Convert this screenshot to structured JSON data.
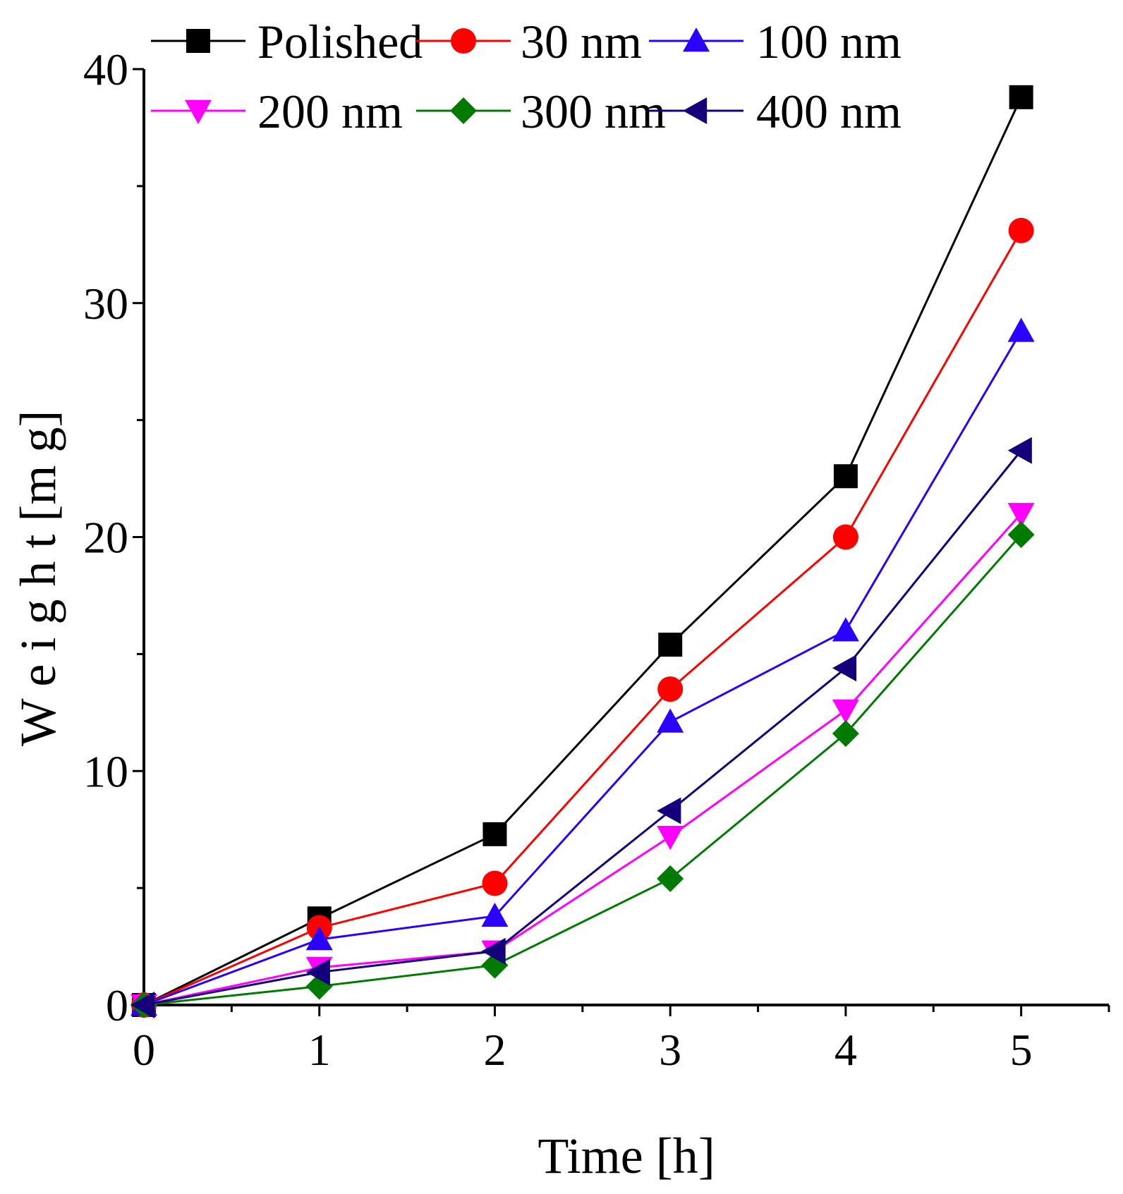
{
  "chart_data": {
    "type": "line",
    "title": "",
    "xlabel": "Time [h]",
    "ylabel": "W e i g h t  [m g]",
    "xlim": [
      0,
      5.5
    ],
    "ylim": [
      0,
      40
    ],
    "x_ticks": [
      0,
      1,
      2,
      3,
      4,
      5
    ],
    "x_tick_labels": [
      "0",
      "1",
      "2",
      "3",
      "4",
      "5"
    ],
    "y_ticks": [
      0,
      10,
      20,
      30,
      40
    ],
    "y_tick_labels": [
      "0",
      "10",
      "20",
      "30",
      "40"
    ],
    "grid": false,
    "legend_position": "top",
    "x": [
      0,
      1,
      2,
      3,
      4,
      5
    ],
    "series": [
      {
        "name": "Polished",
        "color": "#000000",
        "marker": "square",
        "values": [
          0,
          3.7,
          7.3,
          15.4,
          22.6,
          38.8
        ]
      },
      {
        "name": "30 nm",
        "color": "#ff0000",
        "marker": "circle",
        "values": [
          0,
          3.3,
          5.2,
          13.5,
          20.0,
          33.1
        ]
      },
      {
        "name": "100 nm",
        "color": "#2a00ff",
        "marker": "triangle-up",
        "values": [
          0,
          2.8,
          3.8,
          12.1,
          16.0,
          28.8
        ]
      },
      {
        "name": "200 nm",
        "color": "#ff00ff",
        "marker": "triangle-down",
        "values": [
          0,
          1.6,
          2.3,
          7.2,
          12.6,
          21.0
        ]
      },
      {
        "name": "300 nm",
        "color": "#007a00",
        "marker": "diamond",
        "values": [
          0,
          0.8,
          1.7,
          5.4,
          11.6,
          20.1
        ]
      },
      {
        "name": "400 nm",
        "color": "#14007a",
        "marker": "triangle-left",
        "values": [
          0,
          1.4,
          2.3,
          8.3,
          14.4,
          23.7
        ]
      }
    ]
  }
}
